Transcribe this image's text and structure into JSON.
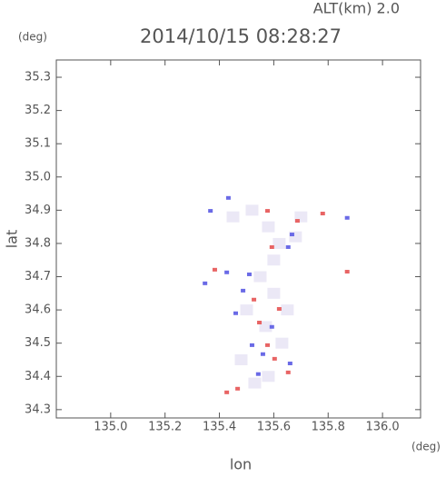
{
  "chart_data": {
    "type": "scatter",
    "title": "2014/10/15 08:28:27",
    "subtitle": "ALT(km) 2.0",
    "x_label": "lon",
    "y_label": "lat",
    "x_unit": "(deg)",
    "y_unit": "(deg)",
    "xlim": [
      134.8,
      136.14
    ],
    "ylim": [
      34.275,
      35.352
    ],
    "xticks": [
      {
        "value": 135,
        "label": "135.0"
      },
      135.2,
      135.4,
      135.6,
      135.8,
      {
        "value": 136,
        "label": "136.0"
      }
    ],
    "yticks": [
      34.3,
      34.4,
      34.5,
      34.6,
      34.7,
      34.8,
      34.9,
      {
        "value": 35,
        "label": "35.0"
      },
      35.1,
      35.2,
      35.3
    ],
    "series": [
      {
        "color": "#ebe8f6",
        "x": [
          135.45,
          135.52,
          135.58,
          135.62,
          135.68,
          135.55,
          135.6,
          135.5,
          135.57,
          135.63,
          135.48,
          135.7,
          135.58,
          135.53,
          135.6,
          135.65
        ],
        "values": [
          34.88,
          34.9,
          34.85,
          34.8,
          34.82,
          34.7,
          34.65,
          34.6,
          34.55,
          34.5,
          34.45,
          34.88,
          34.4,
          34.38,
          34.75,
          34.6
        ]
      },
      {
        "color": "#e86464",
        "x": [
          135.383,
          135.577,
          135.687,
          135.78,
          135.87,
          135.593,
          135.547,
          135.577,
          135.427,
          135.467,
          135.603,
          135.653,
          135.527,
          135.62
        ],
        "values": [
          34.721,
          34.898,
          34.868,
          34.89,
          34.715,
          34.789,
          34.562,
          34.494,
          34.352,
          34.363,
          34.453,
          34.412,
          34.631,
          34.603
        ]
      },
      {
        "color": "#6a6ae6",
        "x": [
          135.367,
          135.433,
          135.667,
          135.653,
          135.87,
          135.427,
          135.487,
          135.593,
          135.56,
          135.543,
          135.66,
          135.52,
          135.46,
          135.51,
          135.347
        ],
        "values": [
          34.898,
          34.937,
          34.827,
          34.789,
          34.877,
          34.713,
          34.658,
          34.549,
          34.467,
          34.407,
          34.439,
          34.494,
          34.59,
          34.707,
          34.68
        ]
      }
    ]
  }
}
